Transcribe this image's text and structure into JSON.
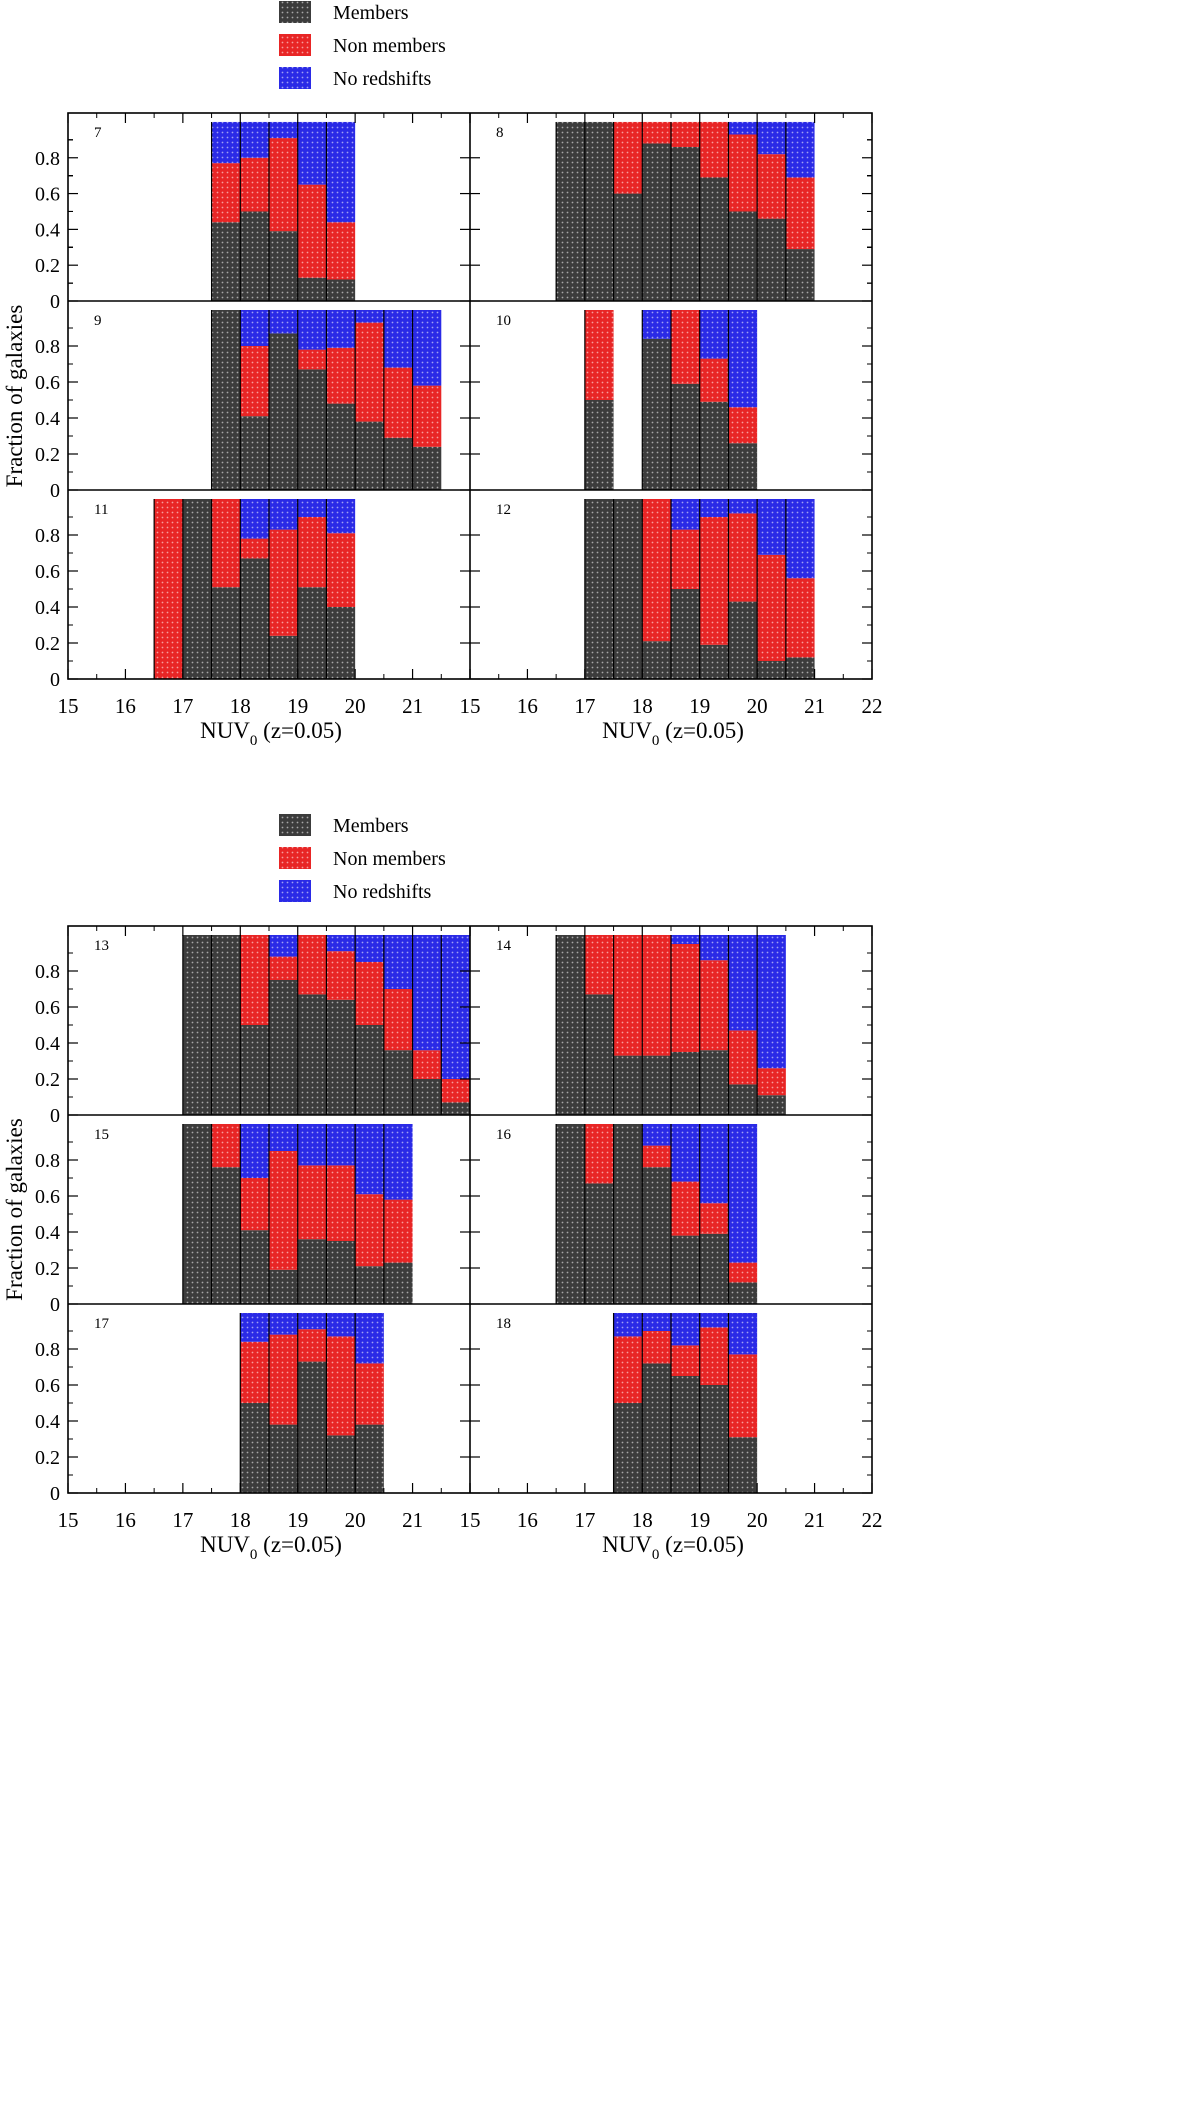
{
  "figure": {
    "ylabel": "Fraction of galaxies",
    "xlabel_main": "NUV",
    "xlabel_sub": "0",
    "xlabel_tail": " (z=0.05)"
  },
  "legend": [
    {
      "key": "members",
      "label": "Members"
    },
    {
      "key": "nonmembers",
      "label": "Non members"
    },
    {
      "key": "noz",
      "label": "No redshifts"
    }
  ],
  "colors": {
    "members": "#3c3c3c",
    "nonmembers": "#e82525",
    "noz": "#2a2ae6",
    "dots": "#ffffff"
  },
  "chart_data": {
    "type": "stacked-bar",
    "title": "",
    "xlabel": "NUV0 (z=0.05)",
    "ylabel": "Fraction of galaxies",
    "xlim": [
      15,
      22
    ],
    "ylim": [
      0,
      1
    ],
    "xticks": [
      15,
      16,
      17,
      18,
      19,
      20,
      21,
      22
    ],
    "yticks": [
      0,
      0.2,
      0.4,
      0.6,
      0.8
    ],
    "bin_width": 0.5,
    "stack_order": [
      "members",
      "nonmembers",
      "noz"
    ],
    "groups": [
      {
        "panels": [
          {
            "id": "7",
            "bins": [
              {
                "x": 17.75,
                "members": 0.44,
                "nonmembers": 0.33,
                "noz": 0.23
              },
              {
                "x": 18.25,
                "members": 0.5,
                "nonmembers": 0.3,
                "noz": 0.2
              },
              {
                "x": 18.75,
                "members": 0.39,
                "nonmembers": 0.52,
                "noz": 0.09
              },
              {
                "x": 19.25,
                "members": 0.13,
                "nonmembers": 0.52,
                "noz": 0.35
              },
              {
                "x": 19.75,
                "members": 0.12,
                "nonmembers": 0.32,
                "noz": 0.56
              }
            ]
          },
          {
            "id": "8",
            "bins": [
              {
                "x": 16.75,
                "members": 1.0,
                "nonmembers": 0,
                "noz": 0
              },
              {
                "x": 17.25,
                "members": 1.0,
                "nonmembers": 0,
                "noz": 0
              },
              {
                "x": 17.75,
                "members": 0.6,
                "nonmembers": 0.4,
                "noz": 0
              },
              {
                "x": 18.25,
                "members": 0.88,
                "nonmembers": 0.12,
                "noz": 0
              },
              {
                "x": 18.75,
                "members": 0.86,
                "nonmembers": 0.14,
                "noz": 0
              },
              {
                "x": 19.25,
                "members": 0.69,
                "nonmembers": 0.31,
                "noz": 0
              },
              {
                "x": 19.75,
                "members": 0.5,
                "nonmembers": 0.43,
                "noz": 0.07
              },
              {
                "x": 20.25,
                "members": 0.46,
                "nonmembers": 0.36,
                "noz": 0.18
              },
              {
                "x": 20.75,
                "members": 0.29,
                "nonmembers": 0.4,
                "noz": 0.31
              }
            ]
          },
          {
            "id": "9",
            "bins": [
              {
                "x": 17.75,
                "members": 1.0,
                "nonmembers": 0,
                "noz": 0
              },
              {
                "x": 18.25,
                "members": 0.41,
                "nonmembers": 0.39,
                "noz": 0.2
              },
              {
                "x": 18.75,
                "members": 0.87,
                "nonmembers": 0,
                "noz": 0.13
              },
              {
                "x": 19.25,
                "members": 0.67,
                "nonmembers": 0.11,
                "noz": 0.22
              },
              {
                "x": 19.75,
                "members": 0.48,
                "nonmembers": 0.31,
                "noz": 0.21
              },
              {
                "x": 20.25,
                "members": 0.38,
                "nonmembers": 0.55,
                "noz": 0.07
              },
              {
                "x": 20.75,
                "members": 0.29,
                "nonmembers": 0.39,
                "noz": 0.32
              },
              {
                "x": 21.25,
                "members": 0.24,
                "nonmembers": 0.34,
                "noz": 0.42
              }
            ]
          },
          {
            "id": "10",
            "bins": [
              {
                "x": 17.25,
                "members": 0.5,
                "nonmembers": 0.5,
                "noz": 0
              },
              {
                "x": 18.25,
                "members": 0.84,
                "nonmembers": 0,
                "noz": 0.16
              },
              {
                "x": 18.75,
                "members": 0.59,
                "nonmembers": 0.41,
                "noz": 0
              },
              {
                "x": 19.25,
                "members": 0.49,
                "nonmembers": 0.24,
                "noz": 0.27
              },
              {
                "x": 19.75,
                "members": 0.26,
                "nonmembers": 0.2,
                "noz": 0.54
              }
            ]
          },
          {
            "id": "11",
            "bins": [
              {
                "x": 16.75,
                "members": 0,
                "nonmembers": 1.0,
                "noz": 0
              },
              {
                "x": 17.25,
                "members": 1.0,
                "nonmembers": 0,
                "noz": 0
              },
              {
                "x": 17.75,
                "members": 0.51,
                "nonmembers": 0.49,
                "noz": 0
              },
              {
                "x": 18.25,
                "members": 0.67,
                "nonmembers": 0.11,
                "noz": 0.22
              },
              {
                "x": 18.75,
                "members": 0.24,
                "nonmembers": 0.59,
                "noz": 0.17
              },
              {
                "x": 19.25,
                "members": 0.51,
                "nonmembers": 0.39,
                "noz": 0.1
              },
              {
                "x": 19.75,
                "members": 0.4,
                "nonmembers": 0.41,
                "noz": 0.19
              }
            ]
          },
          {
            "id": "12",
            "bins": [
              {
                "x": 17.25,
                "members": 1.0,
                "nonmembers": 0,
                "noz": 0
              },
              {
                "x": 17.75,
                "members": 1.0,
                "nonmembers": 0,
                "noz": 0
              },
              {
                "x": 18.25,
                "members": 0.21,
                "nonmembers": 0.79,
                "noz": 0
              },
              {
                "x": 18.75,
                "members": 0.5,
                "nonmembers": 0.33,
                "noz": 0.17
              },
              {
                "x": 19.25,
                "members": 0.19,
                "nonmembers": 0.71,
                "noz": 0.1
              },
              {
                "x": 19.75,
                "members": 0.43,
                "nonmembers": 0.49,
                "noz": 0.08
              },
              {
                "x": 20.25,
                "members": 0.1,
                "nonmembers": 0.59,
                "noz": 0.31
              },
              {
                "x": 20.75,
                "members": 0.12,
                "nonmembers": 0.44,
                "noz": 0.44
              }
            ]
          }
        ]
      },
      {
        "panels": [
          {
            "id": "13",
            "bins": [
              {
                "x": 17.25,
                "members": 1.0,
                "nonmembers": 0,
                "noz": 0
              },
              {
                "x": 17.75,
                "members": 1.0,
                "nonmembers": 0,
                "noz": 0
              },
              {
                "x": 18.25,
                "members": 0.5,
                "nonmembers": 0.5,
                "noz": 0
              },
              {
                "x": 18.75,
                "members": 0.75,
                "nonmembers": 0.13,
                "noz": 0.12
              },
              {
                "x": 19.25,
                "members": 0.67,
                "nonmembers": 0.33,
                "noz": 0
              },
              {
                "x": 19.75,
                "members": 0.64,
                "nonmembers": 0.27,
                "noz": 0.09
              },
              {
                "x": 20.25,
                "members": 0.5,
                "nonmembers": 0.35,
                "noz": 0.15
              },
              {
                "x": 20.75,
                "members": 0.36,
                "nonmembers": 0.34,
                "noz": 0.3
              },
              {
                "x": 21.25,
                "members": 0.2,
                "nonmembers": 0.16,
                "noz": 0.64
              },
              {
                "x": 21.75,
                "members": 0.07,
                "nonmembers": 0.13,
                "noz": 0.8
              }
            ]
          },
          {
            "id": "14",
            "bins": [
              {
                "x": 16.75,
                "members": 1.0,
                "nonmembers": 0,
                "noz": 0
              },
              {
                "x": 17.25,
                "members": 0.67,
                "nonmembers": 0.33,
                "noz": 0
              },
              {
                "x": 17.75,
                "members": 0.33,
                "nonmembers": 0.67,
                "noz": 0
              },
              {
                "x": 18.25,
                "members": 0.33,
                "nonmembers": 0.67,
                "noz": 0
              },
              {
                "x": 18.75,
                "members": 0.35,
                "nonmembers": 0.6,
                "noz": 0.05
              },
              {
                "x": 19.25,
                "members": 0.36,
                "nonmembers": 0.5,
                "noz": 0.14
              },
              {
                "x": 19.75,
                "members": 0.17,
                "nonmembers": 0.3,
                "noz": 0.53
              },
              {
                "x": 20.25,
                "members": 0.11,
                "nonmembers": 0.15,
                "noz": 0.74
              }
            ]
          },
          {
            "id": "15",
            "bins": [
              {
                "x": 17.25,
                "members": 1.0,
                "nonmembers": 0,
                "noz": 0
              },
              {
                "x": 17.75,
                "members": 0.76,
                "nonmembers": 0.24,
                "noz": 0
              },
              {
                "x": 18.25,
                "members": 0.41,
                "nonmembers": 0.29,
                "noz": 0.3
              },
              {
                "x": 18.75,
                "members": 0.19,
                "nonmembers": 0.66,
                "noz": 0.15
              },
              {
                "x": 19.25,
                "members": 0.36,
                "nonmembers": 0.41,
                "noz": 0.23
              },
              {
                "x": 19.75,
                "members": 0.35,
                "nonmembers": 0.42,
                "noz": 0.23
              },
              {
                "x": 20.25,
                "members": 0.21,
                "nonmembers": 0.4,
                "noz": 0.39
              },
              {
                "x": 20.75,
                "members": 0.23,
                "nonmembers": 0.35,
                "noz": 0.42
              }
            ]
          },
          {
            "id": "16",
            "bins": [
              {
                "x": 16.75,
                "members": 1.0,
                "nonmembers": 0,
                "noz": 0
              },
              {
                "x": 17.25,
                "members": 0.67,
                "nonmembers": 0.33,
                "noz": 0
              },
              {
                "x": 17.75,
                "members": 1.0,
                "nonmembers": 0,
                "noz": 0
              },
              {
                "x": 18.25,
                "members": 0.76,
                "nonmembers": 0.12,
                "noz": 0.12
              },
              {
                "x": 18.75,
                "members": 0.38,
                "nonmembers": 0.3,
                "noz": 0.32
              },
              {
                "x": 19.25,
                "members": 0.39,
                "nonmembers": 0.17,
                "noz": 0.44
              },
              {
                "x": 19.75,
                "members": 0.12,
                "nonmembers": 0.11,
                "noz": 0.77
              }
            ]
          },
          {
            "id": "17",
            "bins": [
              {
                "x": 18.25,
                "members": 0.5,
                "nonmembers": 0.34,
                "noz": 0.16
              },
              {
                "x": 18.75,
                "members": 0.38,
                "nonmembers": 0.5,
                "noz": 0.12
              },
              {
                "x": 19.25,
                "members": 0.73,
                "nonmembers": 0.18,
                "noz": 0.09
              },
              {
                "x": 19.75,
                "members": 0.32,
                "nonmembers": 0.55,
                "noz": 0.13
              },
              {
                "x": 20.25,
                "members": 0.38,
                "nonmembers": 0.34,
                "noz": 0.28
              }
            ]
          },
          {
            "id": "18",
            "bins": [
              {
                "x": 17.75,
                "members": 0.5,
                "nonmembers": 0.37,
                "noz": 0.13
              },
              {
                "x": 18.25,
                "members": 0.72,
                "nonmembers": 0.18,
                "noz": 0.1
              },
              {
                "x": 18.75,
                "members": 0.65,
                "nonmembers": 0.17,
                "noz": 0.18
              },
              {
                "x": 19.25,
                "members": 0.6,
                "nonmembers": 0.32,
                "noz": 0.08
              },
              {
                "x": 19.75,
                "members": 0.31,
                "nonmembers": 0.46,
                "noz": 0.23
              }
            ]
          }
        ]
      }
    ]
  }
}
